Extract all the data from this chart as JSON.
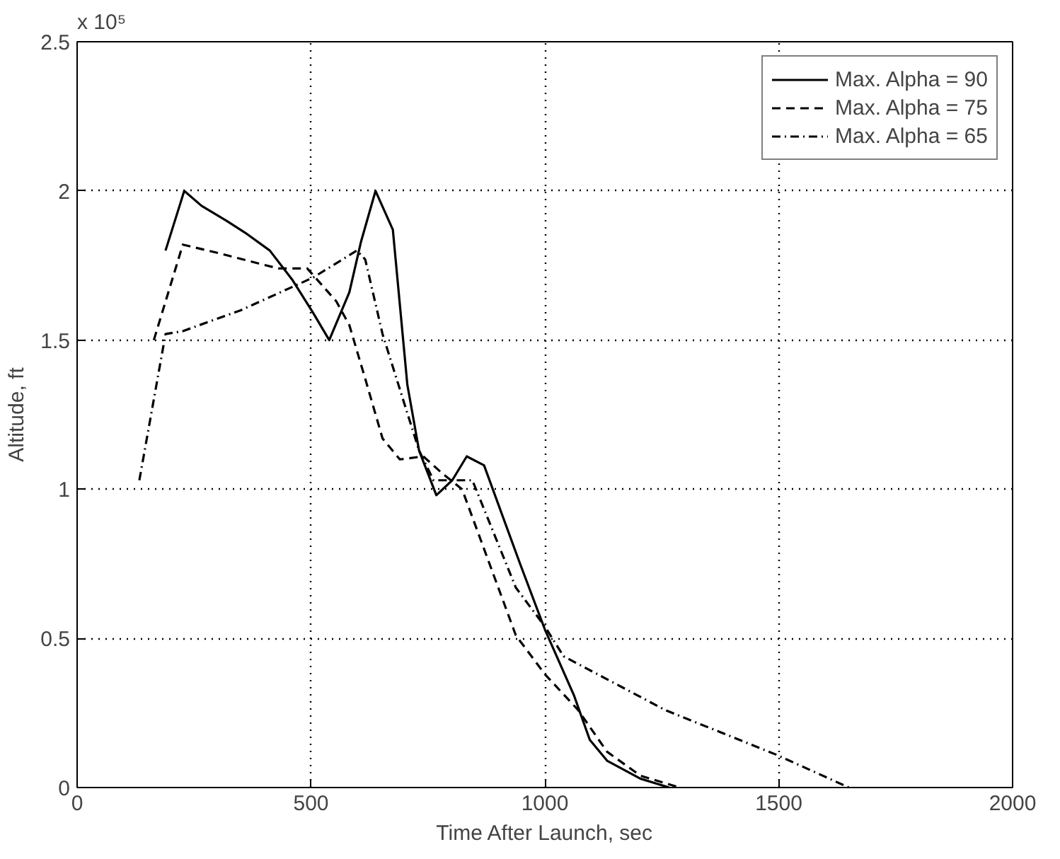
{
  "chart_data": {
    "type": "line",
    "xlabel": "Time After Launch, sec",
    "ylabel": "Altitude, ft",
    "annotations": [
      "x 10⁵"
    ],
    "xlim": [
      0,
      2000
    ],
    "xticks": [
      0,
      500,
      1000,
      1500,
      2000
    ],
    "ylim": [
      0,
      2.5
    ],
    "yticks": [
      0,
      0.5,
      1,
      1.5,
      2,
      2.5
    ],
    "grid": true,
    "legend": "top right",
    "series": [
      {
        "name": "Max. Alpha = 90",
        "color": "#000000",
        "line_style": "solid",
        "x": [
          189,
          229,
          266,
          319,
          359,
          412,
          461,
          505,
          539,
          582,
          607,
          638,
          675,
          706,
          731,
          768,
          802,
          833,
          870,
          947,
          1000,
          1062,
          1096,
          1133,
          1204,
          1266
        ],
        "values": [
          1.8,
          2.0,
          1.95,
          1.9,
          1.86,
          1.8,
          1.7,
          1.59,
          1.5,
          1.66,
          1.83,
          2.0,
          1.87,
          1.35,
          1.13,
          0.98,
          1.03,
          1.11,
          1.08,
          0.75,
          0.53,
          0.31,
          0.16,
          0.09,
          0.03,
          0.0
        ]
      },
      {
        "name": "Max. Alpha = 75",
        "color": "#000000",
        "line_style": "dashed",
        "x": [
          164,
          226,
          306,
          430,
          492,
          554,
          582,
          616,
          653,
          690,
          740,
          783,
          823,
          938,
          1000,
          1071,
          1133,
          1204,
          1288
        ],
        "values": [
          1.5,
          1.82,
          1.79,
          1.74,
          1.74,
          1.63,
          1.55,
          1.37,
          1.17,
          1.1,
          1.11,
          1.05,
          1.0,
          0.51,
          0.38,
          0.26,
          0.12,
          0.04,
          0.0
        ]
      },
      {
        "name": "Max. Alpha = 65",
        "color": "#000000",
        "line_style": "dashdot",
        "x": [
          133,
          189,
          226,
          350,
          505,
          598,
          616,
          653,
          731,
          762,
          845,
          938,
          1000,
          1040,
          1257,
          1495,
          1650
        ],
        "values": [
          1.03,
          1.52,
          1.53,
          1.6,
          1.71,
          1.8,
          1.77,
          1.52,
          1.13,
          1.03,
          1.03,
          0.67,
          0.54,
          0.44,
          0.26,
          0.11,
          0.0
        ]
      }
    ]
  }
}
